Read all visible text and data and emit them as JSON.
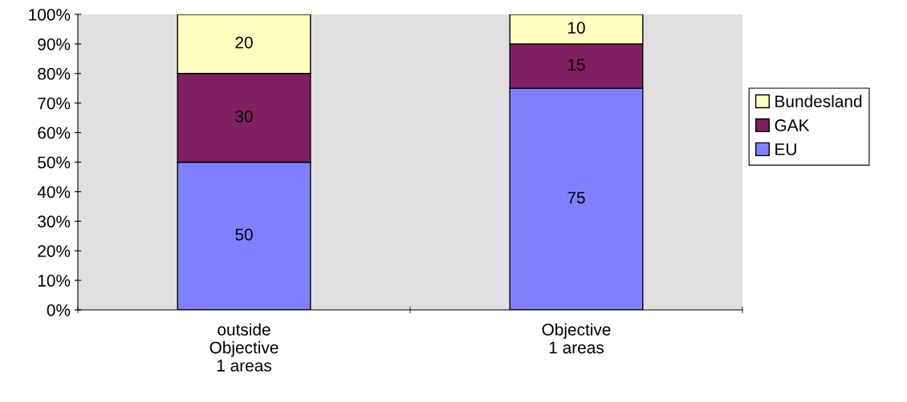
{
  "chart_data": {
    "type": "bar",
    "stacked": true,
    "categories": [
      "outside\nObjective\n1 areas",
      "Objective\n1 areas"
    ],
    "series": [
      {
        "name": "EU",
        "color": "#8080ff",
        "values": [
          50,
          75
        ]
      },
      {
        "name": "GAK",
        "color": "#802060",
        "values": [
          30,
          15
        ]
      },
      {
        "name": "Bundesland",
        "color": "#ffffc0",
        "values": [
          20,
          10
        ]
      }
    ],
    "ylim": [
      0,
      100
    ],
    "yticks": [
      {
        "value": 0,
        "label": "0%"
      },
      {
        "value": 10,
        "label": "10%"
      },
      {
        "value": 20,
        "label": "20%"
      },
      {
        "value": 30,
        "label": "30%"
      },
      {
        "value": 40,
        "label": "40%"
      },
      {
        "value": 50,
        "label": "50%"
      },
      {
        "value": 60,
        "label": "60%"
      },
      {
        "value": 70,
        "label": "70%"
      },
      {
        "value": 80,
        "label": "80%"
      },
      {
        "value": 90,
        "label": "90%"
      },
      {
        "value": 100,
        "label": "100%"
      }
    ],
    "data_labels": true,
    "legend": "right",
    "grid": false
  }
}
